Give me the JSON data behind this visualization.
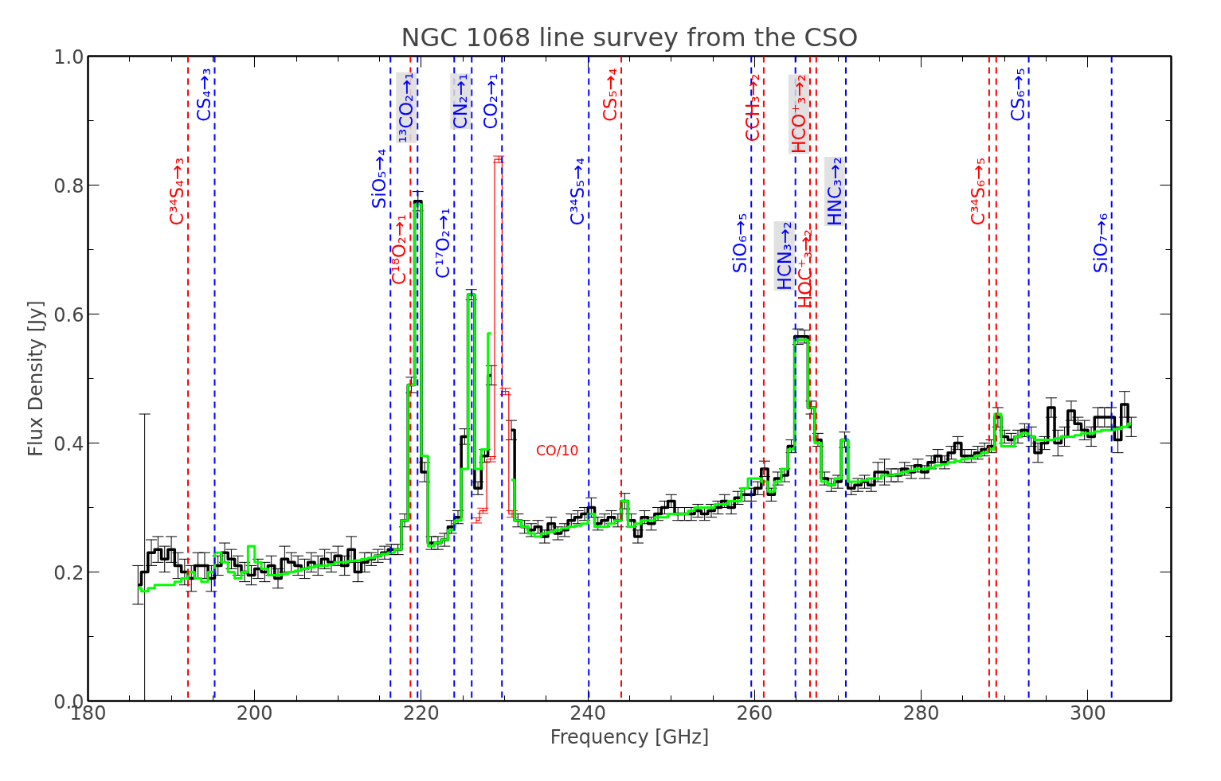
{
  "chart_data": {
    "type": "step",
    "title": "NGC 1068 line survey from the CSO",
    "xlabel": "Frequency [GHz]",
    "ylabel": "Flux Density [Jy]",
    "xlim": [
      180,
      310
    ],
    "ylim": [
      0,
      1.0
    ],
    "xticks": [
      180,
      200,
      220,
      240,
      260,
      280,
      300
    ],
    "yticks": [
      {
        "value": 0,
        "label": "0.0"
      },
      {
        "value": 0.2,
        "label": "0.2"
      },
      {
        "value": 0.4,
        "label": "0.4"
      },
      {
        "value": 0.6,
        "label": "0.6"
      },
      {
        "value": 0.8,
        "label": "0.8"
      },
      {
        "value": 1.0,
        "label": "1.0"
      }
    ],
    "grid": false,
    "series": [
      {
        "color": "#000000",
        "x": [
          186.0,
          186.8,
          187.6,
          188.4,
          189.2,
          190.0,
          190.8,
          191.6,
          192.4,
          193.2,
          194.0,
          194.8,
          195.6,
          196.4,
          197.2,
          198.0,
          198.8,
          199.6,
          200.4,
          201.2,
          202.0,
          202.8,
          203.6,
          204.4,
          205.2,
          206.0,
          206.8,
          207.6,
          208.4,
          209.2,
          210.0,
          210.8,
          211.6,
          212.4,
          213.2,
          214.0,
          214.8,
          215.6,
          216.4,
          217.2,
          218.0,
          218.8,
          219.6,
          220.4,
          221.2,
          222.0,
          222.8,
          223.6,
          224.4,
          225.2,
          226.0,
          226.8,
          227.6,
          228.4,
          229.2,
          230.0,
          230.8,
          231.6,
          232.4,
          233.2,
          234.0,
          234.8,
          235.6,
          236.4,
          237.2,
          238.0,
          238.8,
          239.6,
          240.4,
          241.2,
          242.0,
          242.8,
          243.6,
          244.4,
          245.2,
          246.0,
          246.8,
          247.6,
          248.4,
          249.2,
          250.0,
          250.8,
          251.6,
          252.4,
          253.2,
          254.0,
          254.8,
          255.6,
          256.4,
          257.2,
          258.0,
          258.8,
          259.6,
          260.4,
          261.2,
          262.0,
          262.8,
          263.6,
          264.4,
          265.2,
          266.0,
          266.8,
          267.6,
          268.4,
          269.2,
          270.0,
          270.8,
          271.6,
          272.4,
          273.2,
          274.0,
          274.8,
          275.6,
          276.4,
          277.2,
          278.0,
          278.8,
          279.6,
          280.4,
          281.2,
          282.0,
          282.8,
          283.6,
          284.4,
          285.2,
          286.0,
          286.8,
          287.6,
          288.4,
          289.2,
          290.0,
          290.8,
          291.6,
          292.4,
          293.2,
          294.0,
          294.8,
          295.6,
          296.4,
          297.2,
          298.0,
          298.8,
          299.6,
          300.4,
          301.2,
          302.0,
          302.8,
          303.6,
          304.4,
          305.2
        ],
        "values": [
          0.18,
          0.2,
          0.23,
          0.235,
          0.22,
          0.235,
          0.21,
          0.2,
          0.19,
          0.21,
          0.21,
          0.19,
          0.21,
          0.23,
          0.22,
          0.21,
          0.2,
          0.195,
          0.205,
          0.2,
          0.21,
          0.19,
          0.22,
          0.215,
          0.21,
          0.205,
          0.215,
          0.21,
          0.22,
          0.215,
          0.225,
          0.21,
          0.235,
          0.2,
          0.215,
          0.22,
          0.225,
          0.23,
          0.235,
          0.235,
          0.28,
          0.49,
          0.775,
          0.355,
          0.245,
          0.245,
          0.25,
          0.27,
          0.285,
          0.41,
          0.63,
          0.33,
          0.38,
          0.505,
          null,
          null,
          0.42,
          0.28,
          0.27,
          0.265,
          0.27,
          0.255,
          0.275,
          0.26,
          0.265,
          0.28,
          0.285,
          0.29,
          0.3,
          0.275,
          0.28,
          0.285,
          0.28,
          0.31,
          0.28,
          0.255,
          0.285,
          0.275,
          0.29,
          0.3,
          0.31,
          0.29,
          0.29,
          0.29,
          0.295,
          0.29,
          0.295,
          0.3,
          0.31,
          0.3,
          0.315,
          0.32,
          0.32,
          0.33,
          0.36,
          0.32,
          0.345,
          0.35,
          0.395,
          0.565,
          0.565,
          0.455,
          0.405,
          0.345,
          0.335,
          0.34,
          0.405,
          0.33,
          0.335,
          0.34,
          0.335,
          0.355,
          0.355,
          0.35,
          0.35,
          0.36,
          0.355,
          0.365,
          0.355,
          0.37,
          0.38,
          0.37,
          0.385,
          0.4,
          0.38,
          0.38,
          0.385,
          0.39,
          0.395,
          0.44,
          0.41,
          0.405,
          0.41,
          0.42,
          0.41,
          0.385,
          0.4,
          0.455,
          0.4,
          0.41,
          0.45,
          0.43,
          0.42,
          0.41,
          0.44,
          0.44,
          0.44,
          0.405,
          0.46,
          0.425
        ],
        "errors": [
          0.03,
          [
            0.0,
            0.445
          ],
          0.02,
          0.02,
          0.02,
          0.02,
          0.02,
          0.02,
          0.02,
          0.02,
          0.02,
          0.02,
          0.015,
          0.015,
          0.015,
          0.015,
          0.015,
          0.015,
          0.015,
          0.015,
          0.015,
          0.015,
          0.02,
          0.015,
          0.015,
          0.015,
          0.015,
          0.015,
          0.015,
          0.015,
          0.015,
          0.015,
          0.02,
          0.015,
          0.015,
          0.01,
          0.01,
          0.01,
          0.008,
          0.008,
          0.01,
          0.012,
          0.015,
          0.015,
          0.01,
          0.01,
          0.01,
          0.01,
          0.01,
          0.012,
          0.008,
          0.01,
          0.01,
          0.015,
          null,
          null,
          0.015,
          0.01,
          0.01,
          0.01,
          0.01,
          0.01,
          0.01,
          0.01,
          0.01,
          0.01,
          0.01,
          0.01,
          0.015,
          0.01,
          0.01,
          0.01,
          0.01,
          0.012,
          0.01,
          0.01,
          0.01,
          0.01,
          0.01,
          0.01,
          0.01,
          0.01,
          0.01,
          0.01,
          0.01,
          0.01,
          0.01,
          0.01,
          0.01,
          0.01,
          0.01,
          0.01,
          0.01,
          0.01,
          0.012,
          0.01,
          0.01,
          0.01,
          0.01,
          0.012,
          0.01,
          0.01,
          0.01,
          0.01,
          0.01,
          0.01,
          0.012,
          0.01,
          0.01,
          0.01,
          0.01,
          0.015,
          0.02,
          0.01,
          0.01,
          0.01,
          0.01,
          0.01,
          0.01,
          0.01,
          0.01,
          0.01,
          0.01,
          0.01,
          0.01,
          0.01,
          0.01,
          0.01,
          0.01,
          0.015,
          0.01,
          0.01,
          0.01,
          0.01,
          0.015,
          0.015,
          0.01,
          0.015,
          0.02,
          0.015,
          0.015,
          0.01,
          0.015,
          0.015,
          0.015,
          0.015,
          0.015,
          0.02,
          0.02,
          0.015
        ]
      },
      {
        "color": "#00ff00",
        "x": [
          186.0,
          186.8,
          187.6,
          188.4,
          189.2,
          190.0,
          190.8,
          191.6,
          192.4,
          193.2,
          194.0,
          194.8,
          195.6,
          196.4,
          197.2,
          198.0,
          198.8,
          199.6,
          200.4,
          201.2,
          202.0,
          202.8,
          203.6,
          204.4,
          205.2,
          206.0,
          206.8,
          207.6,
          208.4,
          209.2,
          210.0,
          210.8,
          211.6,
          212.4,
          213.2,
          214.0,
          214.8,
          215.6,
          216.4,
          217.2,
          218.0,
          218.8,
          219.6,
          220.4,
          221.2,
          222.0,
          222.8,
          223.6,
          224.4,
          225.2,
          226.0,
          226.8,
          227.6,
          228.4,
          229.2,
          230.0,
          230.8,
          231.6,
          232.4,
          233.2,
          234.0,
          234.8,
          235.6,
          236.4,
          237.2,
          238.0,
          238.8,
          239.6,
          240.4,
          241.2,
          242.0,
          242.8,
          243.6,
          244.4,
          245.2,
          246.0,
          246.8,
          247.6,
          248.4,
          249.2,
          250.0,
          250.8,
          251.6,
          252.4,
          253.2,
          254.0,
          254.8,
          255.6,
          256.4,
          257.2,
          258.0,
          258.8,
          259.6,
          260.4,
          261.2,
          262.0,
          262.8,
          263.6,
          264.4,
          265.2,
          266.0,
          266.8,
          267.6,
          268.4,
          269.2,
          270.0,
          270.8,
          271.6,
          272.4,
          273.2,
          274.0,
          274.8,
          275.6,
          276.4,
          277.2,
          278.0,
          278.8,
          279.6,
          280.4,
          281.2,
          282.0,
          282.8,
          283.6,
          284.4,
          285.2,
          286.0,
          286.8,
          287.6,
          288.4,
          289.2,
          290.0,
          290.8,
          291.6,
          292.4,
          293.2,
          294.0,
          294.8,
          295.6,
          296.4,
          297.2,
          298.0,
          298.8,
          299.6,
          300.4,
          301.2,
          302.0,
          302.8,
          303.6,
          304.4,
          305.2
        ],
        "values": [
          0.175,
          0.17,
          0.175,
          0.18,
          0.18,
          0.18,
          0.185,
          0.19,
          0.2,
          0.19,
          0.185,
          0.2,
          0.23,
          0.215,
          0.2,
          0.19,
          0.2,
          0.24,
          0.215,
          0.205,
          0.195,
          0.195,
          0.197,
          0.2,
          0.202,
          0.205,
          0.207,
          0.21,
          0.21,
          0.212,
          0.215,
          0.215,
          0.217,
          0.218,
          0.22,
          0.222,
          0.225,
          0.228,
          0.23,
          0.235,
          0.28,
          0.49,
          0.77,
          0.38,
          0.24,
          0.245,
          0.25,
          0.265,
          0.28,
          0.36,
          0.63,
          0.36,
          0.39,
          0.57,
          null,
          null,
          0.343,
          0.28,
          0.27,
          0.26,
          0.255,
          0.26,
          0.262,
          0.265,
          0.268,
          0.27,
          0.272,
          0.275,
          0.29,
          0.27,
          0.27,
          0.275,
          0.28,
          0.31,
          0.27,
          0.275,
          0.28,
          0.28,
          0.285,
          0.285,
          0.29,
          0.29,
          0.29,
          0.295,
          0.3,
          0.3,
          0.3,
          0.305,
          0.305,
          0.31,
          0.31,
          0.33,
          0.345,
          0.345,
          0.34,
          0.325,
          0.34,
          0.36,
          0.39,
          0.56,
          0.56,
          0.455,
          0.4,
          0.34,
          0.335,
          0.345,
          0.405,
          0.34,
          0.34,
          0.342,
          0.345,
          0.345,
          0.35,
          0.35,
          0.352,
          0.355,
          0.357,
          0.36,
          0.36,
          0.362,
          0.365,
          0.367,
          0.37,
          0.372,
          0.375,
          0.377,
          0.38,
          0.385,
          0.39,
          0.445,
          0.395,
          0.395,
          0.41,
          0.415,
          0.41,
          0.405,
          0.405,
          0.405,
          0.407,
          0.41,
          0.41,
          0.412,
          0.415,
          0.415,
          0.418,
          0.42,
          0.42,
          0.422,
          0.425,
          0.43
        ]
      },
      {
        "color": "#ff0000",
        "x": [
          226.6,
          227.4,
          228.3,
          229.3,
          230.1,
          230.9
        ],
        "values": [
          0.28,
          0.295,
          0.375,
          0.84,
          0.48,
          0.29
        ],
        "errors": [
          0.004,
          0.004,
          0.004,
          0.005,
          0.005,
          0.005
        ]
      }
    ],
    "annotations": [
      "CO/10"
    ],
    "ref_lines": [
      {
        "axis": "x",
        "value": 192.0,
        "label": "C³⁴S₄→₃",
        "color": "#ff0000",
        "line_style": "dashed"
      },
      {
        "axis": "x",
        "value": 195.2,
        "label": "CS₄→₃",
        "color": "#0000ff",
        "line_style": "dashed"
      },
      {
        "axis": "x",
        "value": 216.3,
        "label": "SiO₅→₄",
        "color": "#0000ff",
        "line_style": "dashed"
      },
      {
        "axis": "x",
        "value": 218.7,
        "label": "C¹⁸O₂→₁",
        "color": "#ff0000",
        "line_style": "dashed"
      },
      {
        "axis": "x",
        "value": 219.55,
        "label": "¹³CO₂→₁",
        "color": "#0000ff",
        "line_style": "dashed"
      },
      {
        "axis": "x",
        "value": 223.95,
        "label": "C¹⁷O₂→₁",
        "color": "#0000ff",
        "line_style": "dashed"
      },
      {
        "axis": "x",
        "value": 226.05,
        "label": "CN₂→₁",
        "color": "#0000ff",
        "line_style": "dashed"
      },
      {
        "axis": "x",
        "value": 229.68,
        "label": "CO₂→₁",
        "color": "#0000ff",
        "line_style": "dashed"
      },
      {
        "axis": "x",
        "value": 240.1,
        "label": "C³⁴S₅→₄",
        "color": "#0000ff",
        "line_style": "dashed"
      },
      {
        "axis": "x",
        "value": 244.0,
        "label": "CS₅→₄",
        "color": "#ff0000",
        "line_style": "dashed"
      },
      {
        "axis": "x",
        "value": 259.6,
        "label": "SiO₆→₅",
        "color": "#0000ff",
        "line_style": "dashed"
      },
      {
        "axis": "x",
        "value": 261.1,
        "label": "CCH₃→₂",
        "color": "#ff0000",
        "line_style": "dashed"
      },
      {
        "axis": "x",
        "value": 264.9,
        "label": "HCN₃→₂",
        "color": "#0000ff",
        "line_style": "dashed"
      },
      {
        "axis": "x",
        "value": 266.65,
        "label": "HCO⁺₃→₂",
        "color": "#ff0000",
        "line_style": "dashed"
      },
      {
        "axis": "x",
        "value": 267.4,
        "label": "HOC⁺₃→₂",
        "color": "#ff0000",
        "line_style": "dashed"
      },
      {
        "axis": "x",
        "value": 270.95,
        "label": "HNC₃→₂",
        "color": "#0000ff",
        "line_style": "dashed"
      },
      {
        "axis": "x",
        "value": 288.15,
        "label": "C³⁴S₆→₅",
        "color": "#ff0000",
        "line_style": "dashed"
      },
      {
        "axis": "x",
        "value": 289.0,
        "label": null,
        "color": "#ff0000",
        "line_style": "dashed"
      },
      {
        "axis": "x",
        "value": 292.9,
        "label": "CS₆→₅",
        "color": "#0000ff",
        "line_style": "dashed"
      },
      {
        "axis": "x",
        "value": 302.85,
        "label": "SiO₇→₆",
        "color": "#0000ff",
        "line_style": "dashed"
      }
    ]
  }
}
